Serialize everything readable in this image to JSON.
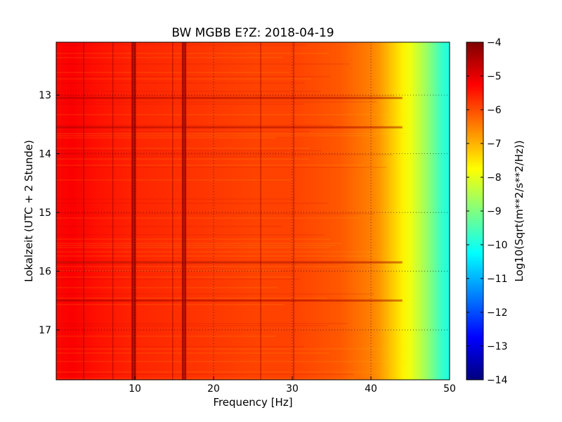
{
  "chart_data": {
    "type": "heatmap",
    "title": "BW MGBB E?Z: 2018-04-19",
    "xlabel": "Frequency [Hz]",
    "ylabel": "Lokalzeit (UTC + 2 Stunde)",
    "xlim": [
      0,
      50
    ],
    "ylim": [
      12.1,
      17.85
    ],
    "y_inverted": true,
    "grid": "dotted",
    "x_ticks": [
      10,
      20,
      30,
      40,
      50
    ],
    "x_tick_labels": [
      "10",
      "20",
      "30",
      "40",
      "50"
    ],
    "y_ticks": [
      13,
      14,
      15,
      16,
      17
    ],
    "y_tick_labels": [
      "13",
      "14",
      "15",
      "16",
      "17"
    ],
    "colorbar": {
      "label": "Log10(Sqrt(m**2/s**2/Hz))",
      "range": [
        -14,
        -4
      ],
      "ticks": [
        -4,
        -5,
        -6,
        -7,
        -8,
        -9,
        -10,
        -11,
        -12,
        -13,
        -14
      ],
      "tick_labels": [
        "−4",
        "−5",
        "−6",
        "−7",
        "−8",
        "−9",
        "−10",
        "−11",
        "−12",
        "−13",
        "−14"
      ],
      "colormap": "jet"
    },
    "spectrum_profile": {
      "freq_hz": [
        0,
        2,
        5,
        10,
        15,
        20,
        25,
        30,
        33,
        36,
        38,
        40,
        41,
        42,
        43,
        44,
        45,
        46,
        47,
        48,
        49,
        50
      ],
      "log10_amplitude": [
        -5.3,
        -5.2,
        -5.4,
        -5.6,
        -5.7,
        -5.8,
        -5.9,
        -5.9,
        -6.0,
        -6.1,
        -6.3,
        -6.5,
        -6.7,
        -7.0,
        -7.3,
        -7.6,
        -7.9,
        -8.3,
        -8.7,
        -9.2,
        -9.7,
        -10.0
      ]
    },
    "vertical_lines_hz": [
      3.5,
      7.2,
      9.7,
      10.0,
      14.8,
      16.1,
      16.4,
      26.0,
      30.2
    ],
    "horizontal_events_hour": [
      13.05,
      13.55,
      15.85,
      16.5
    ]
  }
}
